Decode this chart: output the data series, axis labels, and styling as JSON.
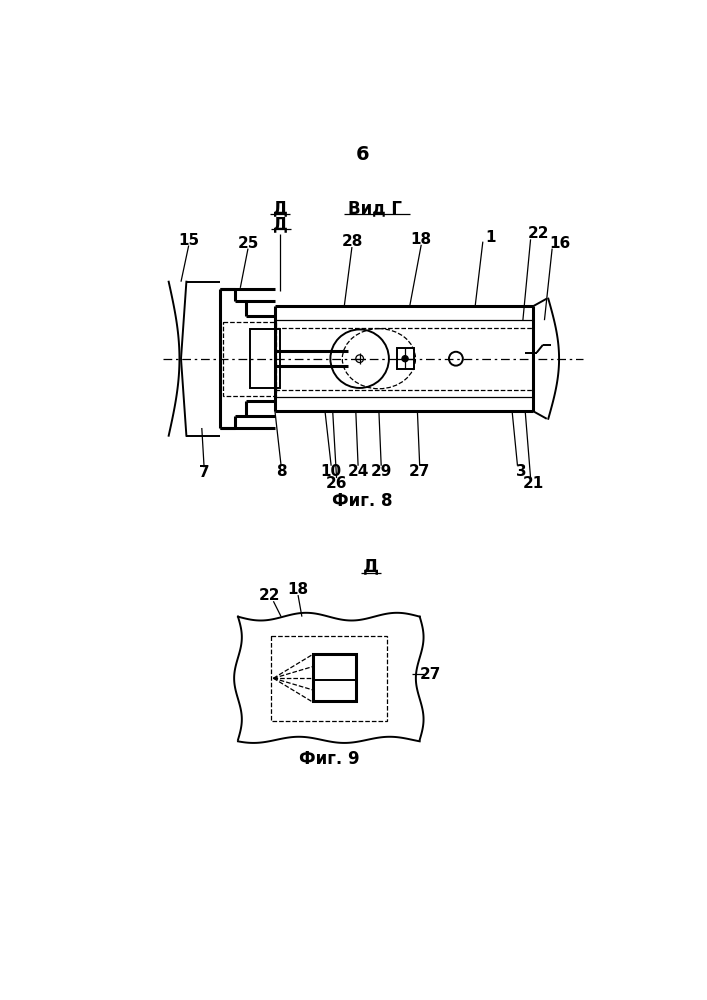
{
  "bg_color": "#ffffff",
  "page_number": "6",
  "fig8_caption": "Фиг. 8",
  "fig9_caption": "Фиг. 9",
  "vid_g": "Вид Г",
  "d_marker": "Д",
  "lw_thick": 2.2,
  "lw_med": 1.4,
  "lw_thin": 0.9
}
